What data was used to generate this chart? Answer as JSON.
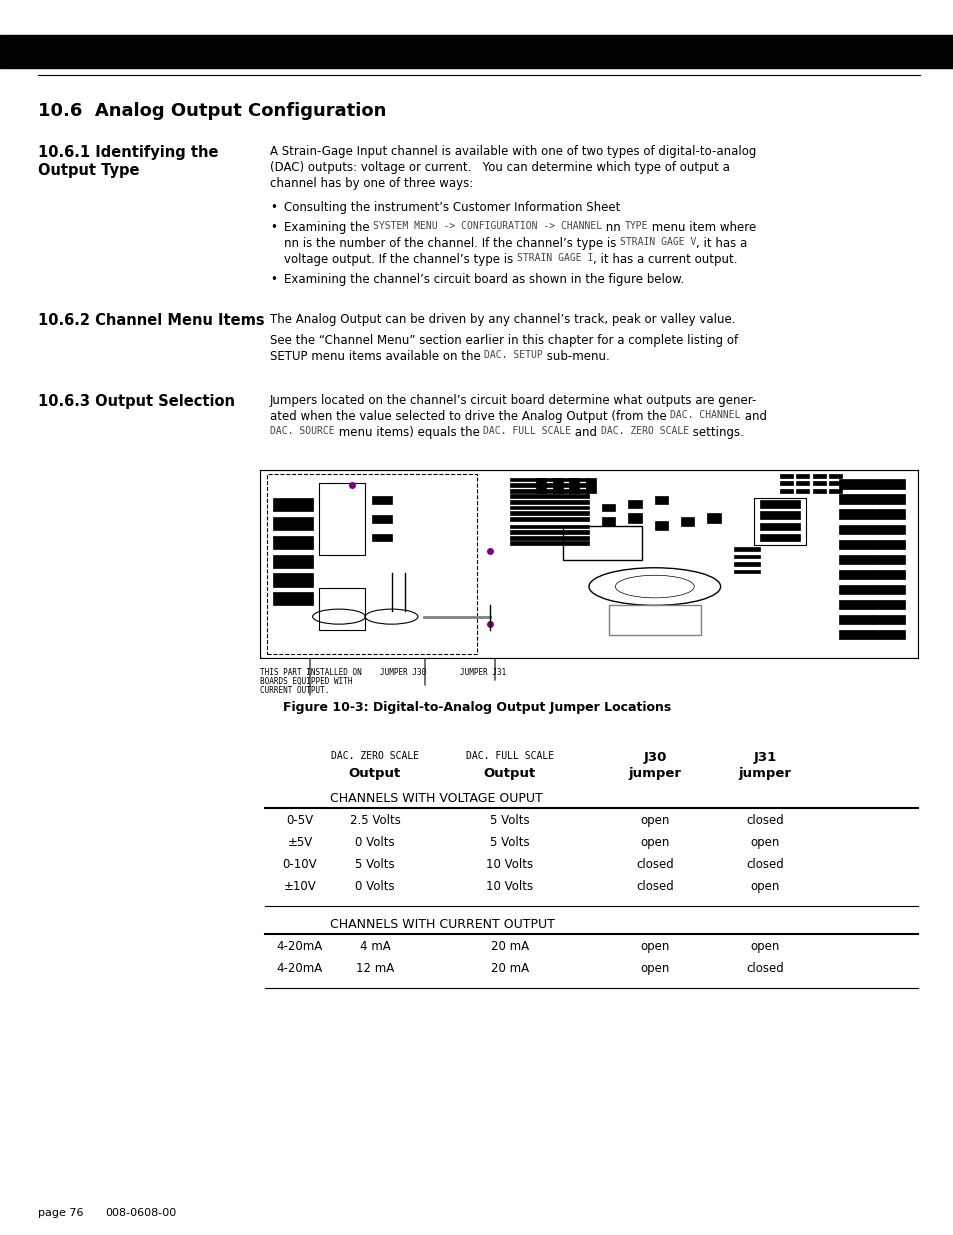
{
  "page_bg": "#ffffff",
  "black_bar_color": "#000000",
  "section_title": "10.6  Analog Output Configuration",
  "body_fontsize": 8.5,
  "subsection_fontsize": 10.5,
  "table_voltage_section": "CHANNELS WITH VOLTAGE OUPUT",
  "table_voltage_rows": [
    [
      "0-5V",
      "2.5 Volts",
      "5 Volts",
      "open",
      "closed"
    ],
    [
      "±5V",
      "0 Volts",
      "5 Volts",
      "open",
      "open"
    ],
    [
      "0-10V",
      "5 Volts",
      "10 Volts",
      "closed",
      "closed"
    ],
    [
      "±10V",
      "0 Volts",
      "10 Volts",
      "closed",
      "open"
    ]
  ],
  "table_current_section": "CHANNELS WITH CURRENT OUTPUT",
  "table_current_rows": [
    [
      "4-20mA",
      "4 mA",
      "20 mA",
      "open",
      "open"
    ],
    [
      "4-20mA",
      "12 mA",
      "20 mA",
      "open",
      "closed"
    ]
  ],
  "footer_page": "page 76",
  "footer_doc": "008-0608-00"
}
